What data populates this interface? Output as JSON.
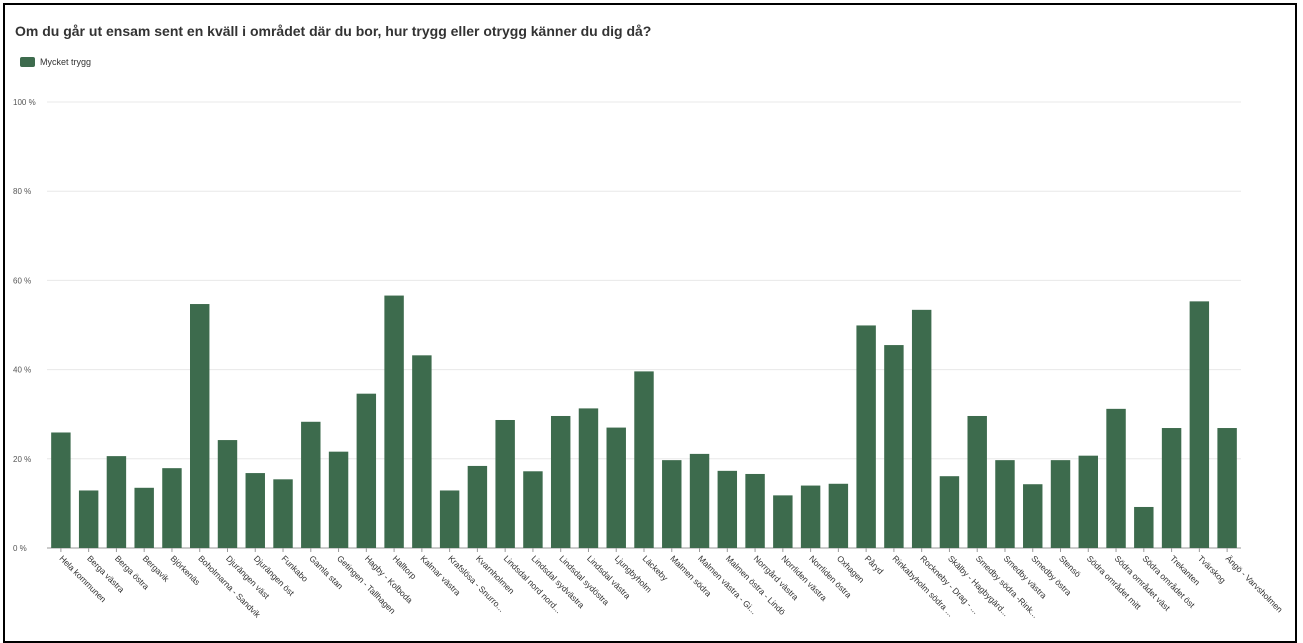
{
  "chart_data": {
    "type": "bar",
    "title": "Om du går ut ensam sent en kväll i området där du bor, hur trygg eller otrygg känner du dig då?",
    "legend": {
      "position": "top-left",
      "entries": [
        "Mycket trygg"
      ]
    },
    "series": [
      {
        "name": "Mycket trygg",
        "color": "#3d6b4d",
        "values": [
          25.9,
          12.9,
          20.6,
          13.5,
          17.9,
          54.7,
          24.2,
          16.8,
          15.4,
          28.3,
          21.6,
          34.6,
          56.6,
          43.2,
          12.9,
          18.4,
          28.7,
          17.2,
          29.6,
          31.3,
          27.0,
          39.6,
          19.7,
          21.1,
          17.3,
          16.6,
          11.8,
          14.0,
          14.4,
          49.9,
          45.5,
          53.4,
          16.1,
          29.6,
          19.7,
          14.3,
          19.7,
          20.7,
          31.2,
          9.2,
          26.9,
          55.3,
          26.9
        ]
      }
    ],
    "categories": [
      "Hela kommunen",
      "Berga västra",
      "Berga östra",
      "Bergavik",
      "Björkenäs",
      "Boholmarna - Sandvik",
      "Djuränge​n väst",
      "Djurängen öst",
      "Funkabo",
      "Gamla stan",
      "Getingen - Tallhagen",
      "Hagby - Kolboda",
      "Halltorp",
      "Kalmar västra",
      "Krafslösa - Snurro...",
      "Kvarnholmen",
      "Lindsdal nord nord...",
      "Lindsdal sydvästra",
      "Lindsdal sydöstra",
      "Lindsdal västra",
      "Ljungbyholm",
      "Läckeby",
      "Malmen södra",
      "Malmen västra - Gi...",
      "Malmen östra - Lindö",
      "Norrgård västra",
      "Norrliden västra",
      "Norrliden östra",
      "Oxhagen",
      "Påryd",
      "Rinkabyholm södra ...",
      "Rockneby - Drag - ...",
      "Skälby - Hagbygärd...",
      "Smedby södra -Rink...",
      "Smedby västra",
      "Smedby östra",
      "Stensö",
      "Södra området mitt",
      "Södra området väst",
      "Södra området öst",
      "Trekanten",
      "Tvärskog",
      "Ängö - Varvsholmen"
    ],
    "y_axis": {
      "ylim": [
        0,
        100
      ],
      "ticks": [
        0,
        20,
        40,
        60,
        80,
        100
      ],
      "tick_labels": [
        "0 %",
        "20 %",
        "40 %",
        "60 %",
        "80 %",
        "100 %"
      ]
    },
    "xlabel": "",
    "ylabel": "",
    "grid": true
  },
  "colors": {
    "bar": "#3d6b4d",
    "grid": "#e8e8e8",
    "axis": "#999999"
  }
}
